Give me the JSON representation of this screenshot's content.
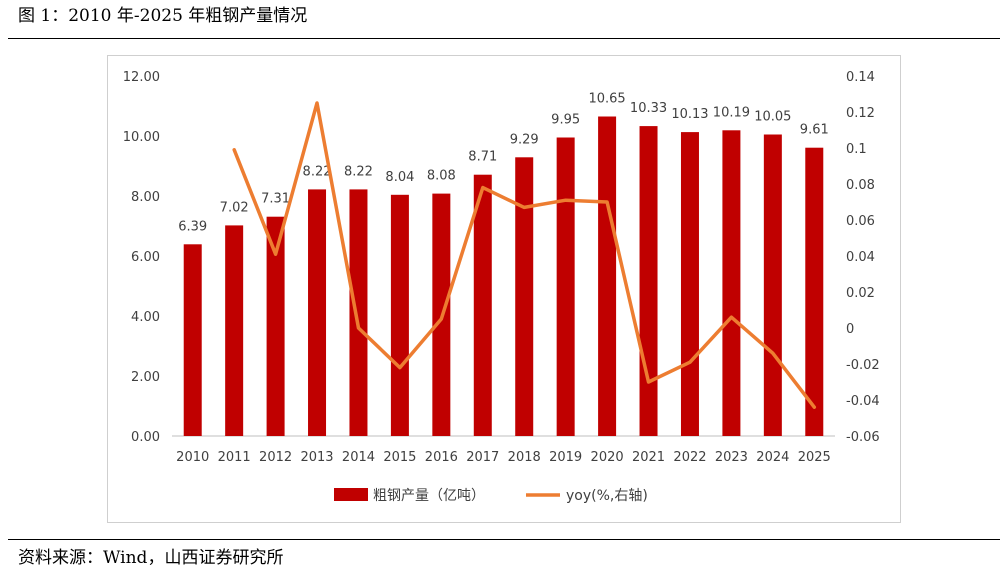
{
  "figure": {
    "title": "图 1：2010 年-2025 年粗钢产量情况",
    "source": "资料来源：Wind，山西证券研究所"
  },
  "chart_data": {
    "type": "bar",
    "categories": [
      "2010",
      "2011",
      "2012",
      "2013",
      "2014",
      "2015",
      "2016",
      "2017",
      "2018",
      "2019",
      "2020",
      "2021",
      "2022",
      "2023",
      "2024",
      "2025"
    ],
    "series": [
      {
        "name": "粗钢产量（亿吨）",
        "type": "bar",
        "axis": "left",
        "color": "#C00000",
        "values": [
          6.39,
          7.02,
          7.31,
          8.22,
          8.22,
          8.04,
          8.08,
          8.71,
          9.29,
          9.95,
          10.65,
          10.33,
          10.13,
          10.19,
          10.05,
          9.61
        ],
        "labels": [
          "6.39",
          "7.02",
          "7.31",
          "8.22",
          "8.22",
          "8.04",
          "8.08",
          "8.71",
          "9.29",
          "9.95",
          "10.65",
          "10.33",
          "10.13",
          "10.19",
          "10.05",
          "9.61"
        ]
      },
      {
        "name": "yoy(%,右轴)",
        "type": "line",
        "axis": "right",
        "color": "#ED7D31",
        "values": [
          null,
          0.099,
          0.041,
          0.125,
          0.0,
          -0.022,
          0.005,
          0.078,
          0.067,
          0.071,
          0.07,
          -0.03,
          -0.019,
          0.006,
          -0.014,
          -0.044
        ]
      }
    ],
    "y_left": {
      "min": 0,
      "max": 12,
      "ticks": [
        0,
        2,
        4,
        6,
        8,
        10,
        12
      ],
      "tick_labels": [
        "0.00",
        "2.00",
        "4.00",
        "6.00",
        "8.00",
        "10.00",
        "12.00"
      ]
    },
    "y_right": {
      "min": -0.06,
      "max": 0.14,
      "ticks": [
        -0.06,
        -0.04,
        -0.02,
        0,
        0.02,
        0.04,
        0.06,
        0.08,
        0.1,
        0.12,
        0.14
      ],
      "tick_labels": [
        "-0.06",
        "-0.04",
        "-0.02",
        "0",
        "0.02",
        "0.04",
        "0.06",
        "0.08",
        "0.1",
        "0.12",
        "0.14"
      ]
    },
    "grid": false,
    "legend_position": "bottom"
  }
}
